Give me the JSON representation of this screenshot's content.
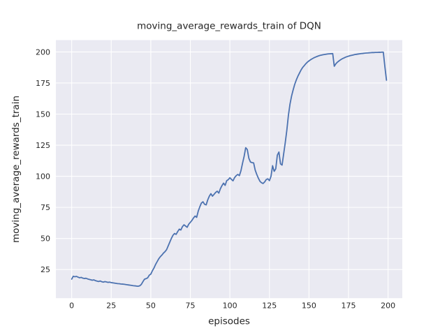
{
  "chart_data": {
    "type": "line",
    "title": "moving_average_rewards_train of DQN",
    "xlabel": "episodes",
    "ylabel": "moving_average_rewards_train",
    "x_ticks": [
      0,
      25,
      50,
      75,
      100,
      125,
      150,
      175,
      200
    ],
    "y_ticks": [
      25,
      50,
      75,
      100,
      125,
      150,
      175,
      200
    ],
    "xlim": [
      -10,
      209
    ],
    "ylim": [
      2,
      209.5
    ],
    "grid": true,
    "legend_position": "none",
    "style": "seaborn-darkgrid",
    "series": [
      {
        "name": "moving_average_rewards_train",
        "x_description": "episode index 0..199",
        "values": [
          17.3,
          19.6,
          19.2,
          19.5,
          18.9,
          18.4,
          18.7,
          18.1,
          17.8,
          18.0,
          17.5,
          17.1,
          16.8,
          16.4,
          16.7,
          16.1,
          15.7,
          15.4,
          15.8,
          15.2,
          14.9,
          15.3,
          15.0,
          14.7,
          14.9,
          14.5,
          14.3,
          14.1,
          13.9,
          13.7,
          13.6,
          13.4,
          13.3,
          13.2,
          13.0,
          12.8,
          12.6,
          12.4,
          12.2,
          12.0,
          11.9,
          11.7,
          11.6,
          11.9,
          13.0,
          15.2,
          17.2,
          17.7,
          18.3,
          20.4,
          21.3,
          24.0,
          26.2,
          29.0,
          31.3,
          33.6,
          35.3,
          36.6,
          38.2,
          39.4,
          41.0,
          44.0,
          47.0,
          50.0,
          52.5,
          54.0,
          53.3,
          55.5,
          57.5,
          56.8,
          59.5,
          61.0,
          60.0,
          59.0,
          61.5,
          63.0,
          64.5,
          66.5,
          68.0,
          67.0,
          72.0,
          75.5,
          78.5,
          79.5,
          77.5,
          77.0,
          81.0,
          84.0,
          86.0,
          84.0,
          85.5,
          87.0,
          88.0,
          86.5,
          90.0,
          92.5,
          94.5,
          92.7,
          96.5,
          97.3,
          98.8,
          97.5,
          96.4,
          99.0,
          100.5,
          101.5,
          100.5,
          104.5,
          110.5,
          116.0,
          123.0,
          121.5,
          114.5,
          111.5,
          111.0,
          110.8,
          105.0,
          101.5,
          98.5,
          96.0,
          94.8,
          94.2,
          95.5,
          97.4,
          98.0,
          96.5,
          100.0,
          108.5,
          104.0,
          106.0,
          117.0,
          119.5,
          110.0,
          109.0,
          118.0,
          127.0,
          137.0,
          149.0,
          158.0,
          164.5,
          169.5,
          174.0,
          177.5,
          180.5,
          183.0,
          185.5,
          187.5,
          189.0,
          190.5,
          191.8,
          192.8,
          193.7,
          194.5,
          195.2,
          195.8,
          196.3,
          196.8,
          197.2,
          197.5,
          197.8,
          198.0,
          198.2,
          198.4,
          198.5,
          198.6,
          198.7,
          188.5,
          190.5,
          191.8,
          192.8,
          193.7,
          194.5,
          195.1,
          195.7,
          196.2,
          196.6,
          197.0,
          197.3,
          197.6,
          197.9,
          198.1,
          198.3,
          198.5,
          198.7,
          198.8,
          199.0,
          199.1,
          199.2,
          199.3,
          199.4,
          199.5,
          199.5,
          199.6,
          199.6,
          199.7,
          199.7,
          199.8,
          199.8,
          188.0,
          177.3
        ]
      }
    ]
  },
  "colors": {
    "line": "#4C72B0",
    "axes_background": "#EAEAF2",
    "gridline": "#FFFFFF",
    "text": "#262626",
    "figure_background": "#FFFFFF"
  }
}
